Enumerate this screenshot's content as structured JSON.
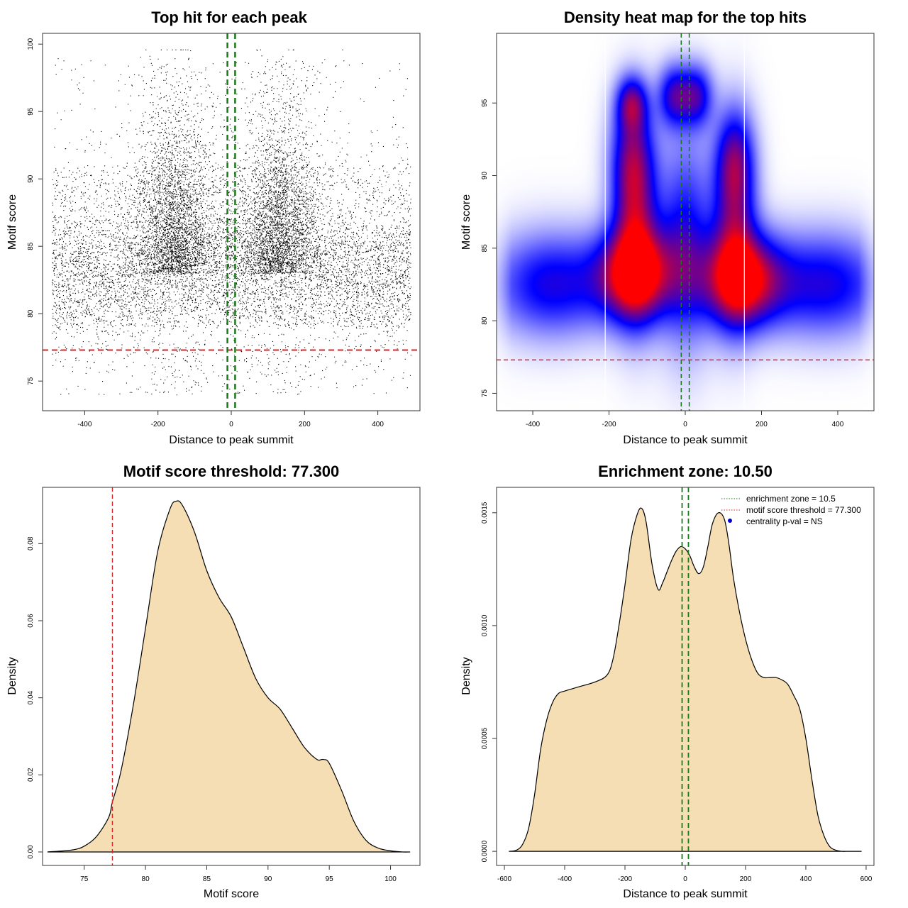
{
  "chart_data": [
    {
      "id": "scatter",
      "type": "scatter",
      "title": "Top hit for each peak",
      "xlabel": "Distance to peak summit",
      "ylabel": "Motif score",
      "xlim": [
        -515,
        515
      ],
      "ylim": [
        72.8,
        100.8
      ],
      "xticks": [
        -400,
        -200,
        0,
        200,
        400
      ],
      "yticks": [
        75,
        80,
        85,
        90,
        95,
        100
      ],
      "x_range": [
        -490,
        490
      ],
      "y_range": [
        73.8,
        99.6
      ],
      "n_points": 14000,
      "point_color": "#000000",
      "threshold_h": 77.3,
      "zone_v": [
        -10.5,
        10.5
      ],
      "threshold_color": "#d62728",
      "zone_color": "#1a7a1a"
    },
    {
      "id": "heatmap",
      "type": "heatmap",
      "title": "Density heat map for the top hits",
      "xlabel": "Distance to peak summit",
      "ylabel": "Motif score",
      "xlim": [
        -495,
        495
      ],
      "ylim": [
        73.8,
        99.8
      ],
      "xticks": [
        -400,
        -200,
        0,
        200,
        400
      ],
      "yticks": [
        75,
        80,
        85,
        90,
        95
      ],
      "blobs": [
        {
          "x": -130,
          "y": 83.2,
          "sx": 70,
          "sy": 2.2,
          "w": 1.0
        },
        {
          "x": 150,
          "y": 82.8,
          "sx": 75,
          "sy": 2.2,
          "w": 1.0
        },
        {
          "x": -130,
          "y": 86.5,
          "sx": 40,
          "sy": 4.5,
          "w": 0.55
        },
        {
          "x": 130,
          "y": 86.5,
          "sx": 40,
          "sy": 4.5,
          "w": 0.55
        },
        {
          "x": -140,
          "y": 91.0,
          "sx": 40,
          "sy": 3.0,
          "w": 0.55
        },
        {
          "x": 130,
          "y": 91.0,
          "sx": 35,
          "sy": 2.5,
          "w": 0.5
        },
        {
          "x": -140,
          "y": 95.0,
          "sx": 28,
          "sy": 1.3,
          "w": 0.55
        },
        {
          "x": -30,
          "y": 95.5,
          "sx": 30,
          "sy": 1.5,
          "w": 0.55
        },
        {
          "x": 30,
          "y": 95.5,
          "sx": 30,
          "sy": 1.5,
          "w": 0.55
        },
        {
          "x": 0,
          "y": 85.5,
          "sx": 50,
          "sy": 5.0,
          "w": 0.5
        },
        {
          "x": -350,
          "y": 82.5,
          "sx": 110,
          "sy": 2.5,
          "w": 0.55
        },
        {
          "x": 370,
          "y": 82.5,
          "sx": 110,
          "sy": 2.5,
          "w": 0.55
        }
      ],
      "white_lines_x": [
        -210,
        155
      ],
      "threshold_h": 77.3,
      "zone_v": [
        -10.5,
        10.5
      ],
      "threshold_color": "#d62728",
      "zone_color": "#1a7a1a"
    },
    {
      "id": "score_density",
      "type": "area",
      "title": "Motif score threshold: 77.300",
      "xlabel": "Motif score",
      "ylabel": "Density",
      "xlim": [
        71.6,
        102.4
      ],
      "ylim": [
        -0.0035,
        0.0946
      ],
      "xticks": [
        75,
        80,
        85,
        90,
        95,
        100
      ],
      "yticks": [
        0.0,
        0.02,
        0.04,
        0.06,
        0.08
      ],
      "ytick_labels": [
        "0.00",
        "0.02",
        "0.04",
        "0.06",
        "0.08"
      ],
      "x": [
        72,
        74,
        75,
        76,
        77,
        77.3,
        78,
        79,
        80,
        81,
        82,
        82.5,
        83,
        84,
        85,
        86,
        87,
        88,
        89,
        90,
        91,
        92,
        93,
        94,
        94.5,
        95,
        96,
        97,
        98,
        99,
        100,
        101,
        101.6
      ],
      "y": [
        0.0,
        0.0005,
        0.0015,
        0.004,
        0.009,
        0.013,
        0.021,
        0.038,
        0.058,
        0.078,
        0.089,
        0.091,
        0.09,
        0.083,
        0.073,
        0.066,
        0.061,
        0.053,
        0.045,
        0.04,
        0.037,
        0.032,
        0.027,
        0.024,
        0.024,
        0.023,
        0.016,
        0.008,
        0.003,
        0.001,
        0.0003,
        0.0,
        0.0
      ],
      "fill_color": "#f5deb3",
      "threshold_v": 77.3,
      "threshold_color": "#d62728"
    },
    {
      "id": "distance_density",
      "type": "area",
      "title": "Enrichment zone: 10.50",
      "xlabel": "Distance to peak summit",
      "ylabel": "Density",
      "xlim": [
        -626,
        626
      ],
      "ylim": [
        -6.25e-05,
        0.0016125
      ],
      "xticks": [
        -600,
        -400,
        -200,
        0,
        200,
        400,
        600
      ],
      "yticks": [
        0.0,
        0.0005,
        0.001,
        0.0015
      ],
      "ytick_labels": [
        "0.0000",
        "0.0005",
        "0.0010",
        "0.0015"
      ],
      "x": [
        -585,
        -560,
        -540,
        -520,
        -500,
        -480,
        -460,
        -440,
        -420,
        -400,
        -350,
        -300,
        -260,
        -240,
        -220,
        -200,
        -180,
        -160,
        -145,
        -130,
        -110,
        -90,
        -75,
        -60,
        -45,
        -30,
        -15,
        0,
        15,
        30,
        45,
        60,
        75,
        90,
        110,
        130,
        145,
        160,
        180,
        200,
        220,
        240,
        260,
        280,
        300,
        320,
        340,
        360,
        380,
        400,
        420,
        440,
        460,
        480,
        500,
        520,
        540,
        560,
        585
      ],
      "y": [
        0.0,
        5e-06,
        3e-05,
        0.0001,
        0.00025,
        0.00045,
        0.00058,
        0.00066,
        0.0007,
        0.00071,
        0.00073,
        0.00075,
        0.00078,
        0.00085,
        0.001,
        0.00118,
        0.00138,
        0.00149,
        0.00152,
        0.00146,
        0.00127,
        0.00116,
        0.00119,
        0.00124,
        0.00129,
        0.00133,
        0.00135,
        0.00134,
        0.00131,
        0.00126,
        0.00123,
        0.00126,
        0.00135,
        0.00145,
        0.0015,
        0.00147,
        0.00136,
        0.00121,
        0.00106,
        0.00094,
        0.00085,
        0.00079,
        0.00077,
        0.00077,
        0.00077,
        0.00076,
        0.00074,
        0.00069,
        0.00063,
        0.0005,
        0.00032,
        0.00016,
        7e-05,
        2e-05,
        5e-06,
        0.0,
        0.0,
        0.0,
        0.0
      ],
      "fill_color": "#f5deb3",
      "zone_v": [
        -10.5,
        10.5
      ],
      "zone_color": "#1a7a1a",
      "legend": [
        {
          "label": "enrichment zone = 10.5",
          "style": "dotted-line",
          "color": "#1a7a1a"
        },
        {
          "label": "motif score threshold = 77.300",
          "style": "dotted-line",
          "color": "#d62728"
        },
        {
          "label": "centrality p-val = NS",
          "style": "dot",
          "color": "#0000cc"
        }
      ],
      "legend_position": "top-right"
    }
  ]
}
